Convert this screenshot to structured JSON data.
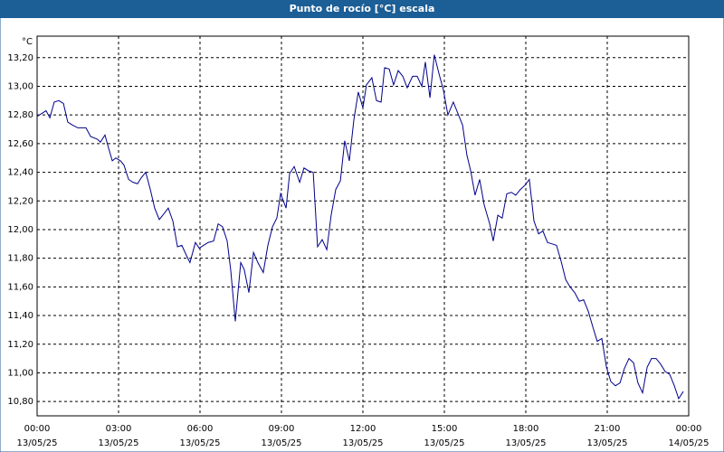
{
  "chart_data": {
    "type": "line",
    "title": "Punto de rocío [°C] escala",
    "y_unit": "°C",
    "x": [
      0,
      0.17,
      0.33,
      0.47,
      0.63,
      0.8,
      0.97,
      1.13,
      1.3,
      1.5,
      1.8,
      1.97,
      2.23,
      2.33,
      2.5,
      2.63,
      2.77,
      2.9,
      3.07,
      3.2,
      3.37,
      3.53,
      3.7,
      3.83,
      4,
      4.17,
      4.33,
      4.5,
      4.67,
      4.83,
      5,
      5.17,
      5.33,
      5.5,
      5.63,
      5.83,
      5.97,
      6.13,
      6.3,
      6.5,
      6.67,
      6.83,
      7,
      7.13,
      7.3,
      7.5,
      7.63,
      7.8,
      7.97,
      8.13,
      8.33,
      8.5,
      8.67,
      8.83,
      8.97,
      9.17,
      9.3,
      9.47,
      9.67,
      9.83,
      10,
      10.17,
      10.33,
      10.5,
      10.67,
      10.83,
      11,
      11.17,
      11.33,
      11.5,
      11.67,
      11.83,
      12,
      12.13,
      12.33,
      12.5,
      12.67,
      12.8,
      12.97,
      13.13,
      13.3,
      13.47,
      13.63,
      13.83,
      14,
      14.17,
      14.3,
      14.47,
      14.63,
      14.8,
      14.97,
      15.13,
      15.33,
      15.5,
      15.67,
      15.83,
      15.97,
      16.13,
      16.3,
      16.47,
      16.67,
      16.8,
      16.97,
      17.13,
      17.3,
      17.47,
      17.63,
      17.8,
      17.97,
      18.13,
      18.3,
      18.47,
      18.63,
      18.8,
      18.97,
      19.13,
      19.3,
      19.47,
      19.63,
      19.8,
      19.97,
      20.13,
      20.3,
      20.47,
      20.63,
      20.8,
      20.97,
      21.13,
      21.3,
      21.47,
      21.63,
      21.8,
      21.97,
      22.13,
      22.3,
      22.47,
      22.63,
      22.8,
      22.97,
      23.13,
      23.3,
      23.47,
      23.63,
      23.8
    ],
    "series": [
      {
        "name": "Punto de rocío",
        "color": "#00008b",
        "values": [
          12.79,
          12.81,
          12.83,
          12.78,
          12.89,
          12.9,
          12.88,
          12.75,
          12.73,
          12.71,
          12.71,
          12.65,
          12.63,
          12.61,
          12.66,
          12.57,
          12.48,
          12.5,
          12.48,
          12.45,
          12.35,
          12.33,
          12.32,
          12.36,
          12.4,
          12.28,
          12.15,
          12.07,
          12.11,
          12.15,
          12.06,
          11.88,
          11.89,
          11.82,
          11.77,
          11.91,
          11.87,
          11.89,
          11.91,
          11.92,
          12.04,
          12.02,
          11.92,
          11.72,
          11.36,
          11.77,
          11.72,
          11.56,
          11.84,
          11.77,
          11.7,
          11.89,
          12.02,
          12.08,
          12.25,
          12.15,
          12.39,
          12.44,
          12.33,
          12.43,
          12.41,
          12.4,
          11.88,
          11.93,
          11.86,
          12.1,
          12.28,
          12.34,
          12.62,
          12.48,
          12.77,
          12.96,
          12.85,
          13.01,
          13.06,
          12.9,
          12.89,
          13.13,
          13.12,
          13.01,
          13.11,
          13.07,
          12.99,
          13.07,
          13.07,
          13,
          13.17,
          12.92,
          13.22,
          13.09,
          12.97,
          12.8,
          12.89,
          12.81,
          12.73,
          12.52,
          12.41,
          12.24,
          12.35,
          12.17,
          12.04,
          11.92,
          12.1,
          12.08,
          12.25,
          12.26,
          12.24,
          12.28,
          12.31,
          12.35,
          12.06,
          11.97,
          11.99,
          11.91,
          11.9,
          11.89,
          11.78,
          11.65,
          11.6,
          11.56,
          11.5,
          11.51,
          11.43,
          11.32,
          11.22,
          11.24,
          11.04,
          10.94,
          10.91,
          10.93,
          11.03,
          11.1,
          11.07,
          10.93,
          10.86,
          11.04,
          11.1,
          11.1,
          11.06,
          11.01,
          10.99,
          10.91,
          10.82,
          10.87
        ]
      }
    ],
    "xlim": [
      0,
      24
    ],
    "xticks": [
      {
        "value": 0,
        "label": "00:00",
        "sublabel": "13/05/25"
      },
      {
        "value": 3,
        "label": "03:00",
        "sublabel": "13/05/25"
      },
      {
        "value": 6,
        "label": "06:00",
        "sublabel": "13/05/25"
      },
      {
        "value": 9,
        "label": "09:00",
        "sublabel": "13/05/25"
      },
      {
        "value": 12,
        "label": "12:00",
        "sublabel": "13/05/25"
      },
      {
        "value": 15,
        "label": "15:00",
        "sublabel": "13/05/25"
      },
      {
        "value": 18,
        "label": "18:00",
        "sublabel": "13/05/25"
      },
      {
        "value": 21,
        "label": "21:00",
        "sublabel": "13/05/25"
      },
      {
        "value": 24,
        "label": "00:00",
        "sublabel": "14/05/25"
      }
    ],
    "ylim": [
      10.7,
      13.35
    ],
    "yticks": [
      {
        "value": 10.8,
        "label": "10,80"
      },
      {
        "value": 11,
        "label": "11,00"
      },
      {
        "value": 11.2,
        "label": "11,20"
      },
      {
        "value": 11.4,
        "label": "11,40"
      },
      {
        "value": 11.6,
        "label": "11,60"
      },
      {
        "value": 11.8,
        "label": "11,80"
      },
      {
        "value": 12,
        "label": "12,00"
      },
      {
        "value": 12.2,
        "label": "12,20"
      },
      {
        "value": 12.4,
        "label": "12,40"
      },
      {
        "value": 12.6,
        "label": "12,60"
      },
      {
        "value": 12.8,
        "label": "12,80"
      },
      {
        "value": 13,
        "label": "13,00"
      },
      {
        "value": 13.2,
        "label": "13,20"
      }
    ],
    "grid": true
  }
}
